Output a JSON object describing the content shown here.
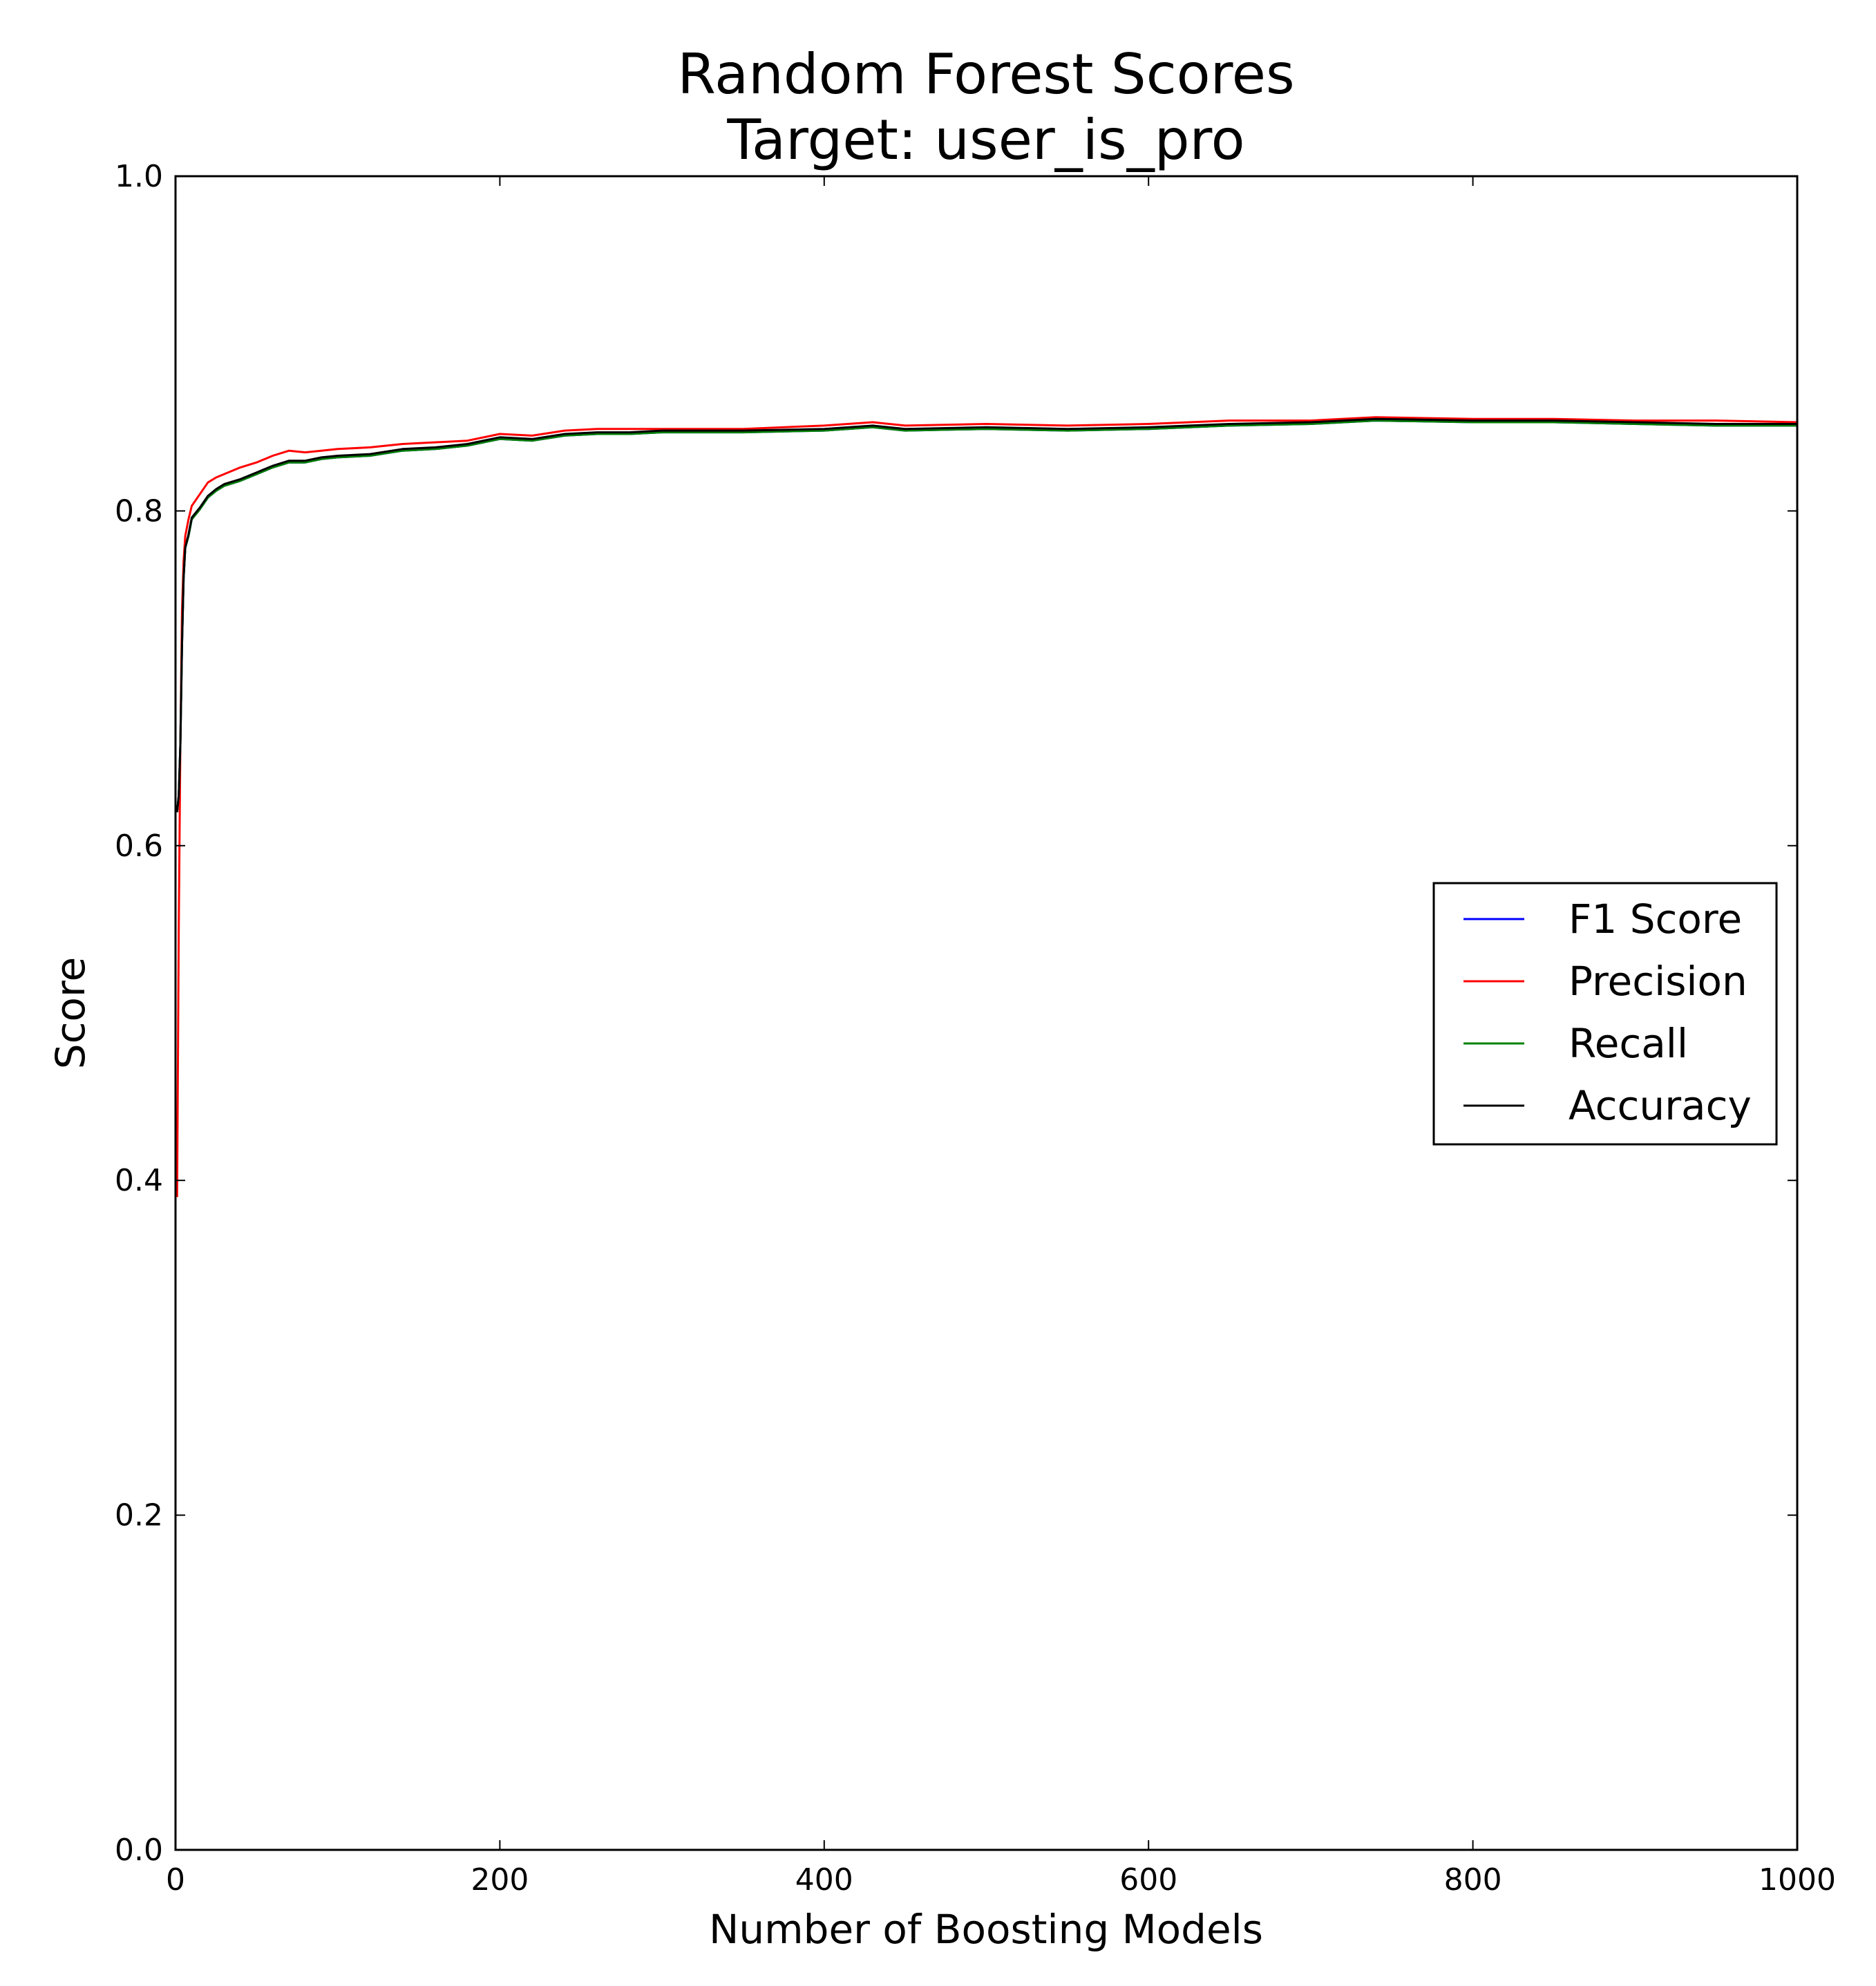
{
  "chart_data": {
    "type": "line",
    "title": "Random Forest Scores",
    "subtitle": "Target: user_is_pro",
    "xlabel": "Number of Boosting Models",
    "ylabel": "Score",
    "xlim": [
      0,
      1000
    ],
    "ylim": [
      0.0,
      1.0
    ],
    "xticks": [
      "0",
      "200",
      "400",
      "600",
      "800",
      "1000"
    ],
    "yticks": [
      "0.0",
      "0.2",
      "0.4",
      "0.6",
      "0.8",
      "1.0"
    ],
    "grid": false,
    "legend_position": "center-right",
    "series": [
      {
        "name": "F1 Score",
        "color": "#0000ff",
        "x": [
          1,
          2,
          3,
          4,
          5,
          6,
          8,
          10,
          15,
          20,
          25,
          30,
          40,
          50,
          60,
          70,
          80,
          90,
          100,
          120,
          140,
          160,
          180,
          200,
          220,
          240,
          260,
          280,
          300,
          350,
          400,
          430,
          450,
          500,
          550,
          600,
          650,
          700,
          740,
          800,
          850,
          900,
          950,
          1000
        ],
        "y": [
          0.62,
          0.63,
          0.66,
          0.72,
          0.76,
          0.778,
          0.785,
          0.795,
          0.801,
          0.808,
          0.812,
          0.815,
          0.818,
          0.822,
          0.826,
          0.829,
          0.829,
          0.831,
          0.832,
          0.833,
          0.836,
          0.837,
          0.839,
          0.843,
          0.842,
          0.845,
          0.846,
          0.846,
          0.847,
          0.847,
          0.848,
          0.85,
          0.848,
          0.849,
          0.848,
          0.849,
          0.851,
          0.852,
          0.854,
          0.853,
          0.853,
          0.852,
          0.851,
          0.851
        ]
      },
      {
        "name": "Precision",
        "color": "#ff0000",
        "x": [
          1,
          2,
          3,
          4,
          5,
          6,
          8,
          10,
          15,
          20,
          25,
          30,
          40,
          50,
          60,
          70,
          80,
          90,
          100,
          120,
          140,
          160,
          180,
          200,
          220,
          240,
          260,
          280,
          300,
          350,
          400,
          430,
          450,
          500,
          550,
          600,
          650,
          700,
          740,
          800,
          850,
          900,
          950,
          1000
        ],
        "y": [
          0.39,
          0.55,
          0.66,
          0.74,
          0.77,
          0.785,
          0.795,
          0.803,
          0.81,
          0.817,
          0.82,
          0.822,
          0.826,
          0.829,
          0.833,
          0.836,
          0.835,
          0.836,
          0.837,
          0.838,
          0.84,
          0.841,
          0.842,
          0.846,
          0.845,
          0.848,
          0.849,
          0.849,
          0.849,
          0.849,
          0.851,
          0.853,
          0.851,
          0.852,
          0.851,
          0.852,
          0.854,
          0.854,
          0.856,
          0.855,
          0.855,
          0.854,
          0.854,
          0.853
        ]
      },
      {
        "name": "Recall",
        "color": "#008000",
        "x": [
          1,
          2,
          3,
          4,
          5,
          6,
          8,
          10,
          15,
          20,
          25,
          30,
          40,
          50,
          60,
          70,
          80,
          90,
          100,
          120,
          140,
          160,
          180,
          200,
          220,
          240,
          260,
          280,
          300,
          350,
          400,
          430,
          450,
          500,
          550,
          600,
          650,
          700,
          740,
          800,
          850,
          900,
          950,
          1000
        ],
        "y": [
          0.62,
          0.63,
          0.66,
          0.72,
          0.76,
          0.778,
          0.785,
          0.795,
          0.801,
          0.808,
          0.812,
          0.815,
          0.818,
          0.822,
          0.826,
          0.829,
          0.829,
          0.831,
          0.832,
          0.833,
          0.836,
          0.837,
          0.839,
          0.843,
          0.842,
          0.845,
          0.846,
          0.846,
          0.847,
          0.847,
          0.848,
          0.85,
          0.848,
          0.849,
          0.848,
          0.849,
          0.851,
          0.852,
          0.854,
          0.853,
          0.853,
          0.852,
          0.851,
          0.851
        ]
      },
      {
        "name": "Accuracy",
        "color": "#000000",
        "x": [
          1,
          2,
          3,
          4,
          5,
          6,
          8,
          10,
          15,
          20,
          25,
          30,
          40,
          50,
          60,
          70,
          80,
          90,
          100,
          120,
          140,
          160,
          180,
          200,
          220,
          240,
          260,
          280,
          300,
          350,
          400,
          430,
          450,
          500,
          550,
          600,
          650,
          700,
          740,
          800,
          850,
          900,
          950,
          1000
        ],
        "y": [
          0.62,
          0.63,
          0.66,
          0.72,
          0.76,
          0.778,
          0.786,
          0.796,
          0.802,
          0.809,
          0.813,
          0.816,
          0.819,
          0.823,
          0.827,
          0.83,
          0.83,
          0.832,
          0.833,
          0.834,
          0.837,
          0.838,
          0.84,
          0.844,
          0.843,
          0.846,
          0.847,
          0.847,
          0.848,
          0.848,
          0.849,
          0.851,
          0.849,
          0.85,
          0.849,
          0.85,
          0.852,
          0.853,
          0.855,
          0.854,
          0.854,
          0.853,
          0.852,
          0.852
        ]
      }
    ]
  }
}
